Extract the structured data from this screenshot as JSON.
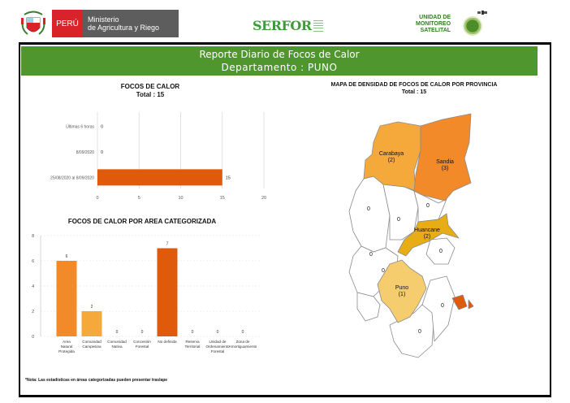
{
  "header": {
    "peru_label": "PERÚ",
    "ministry_line1": "Ministerio",
    "ministry_line2": "de Agricultura y Riego",
    "serfor_logo": "SERFOR",
    "ums_line1": "UNIDAD DE",
    "ums_line2": "MONITOREO",
    "ums_line3": "SATELITAL",
    "icons": [
      "coat-of-arms-icon",
      "globe-icon",
      "satellite-icon"
    ]
  },
  "banner": {
    "title": "Reporte Diario de Focos de Calor",
    "subtitle": "Departamento : PUNO",
    "color": "#4f962e"
  },
  "chart_data": [
    {
      "type": "bar",
      "orientation": "horizontal",
      "title": "FOCOS DE CALOR",
      "subtitle": "Total : 15",
      "categories": [
        "Últimas 6 horas",
        "8/09/2020",
        "25/08/2020 al 8/09/2020"
      ],
      "values": [
        0,
        0,
        15
      ],
      "value_labels": [
        "0",
        "0",
        "15"
      ],
      "xlim": [
        0,
        20
      ],
      "xticks": [
        "0",
        "5",
        "10",
        "15",
        "20"
      ],
      "grid": true,
      "bar_color": "#e05a0c"
    },
    {
      "type": "bar",
      "orientation": "vertical",
      "title": "FOCOS DE CALOR POR AREA CATEGORIZADA",
      "categories": [
        [
          "Area",
          "Natural",
          "Protegida"
        ],
        [
          "Comunidad",
          "Campesina"
        ],
        [
          "Comunidad",
          "Nativa"
        ],
        [
          "Concesión",
          "Forestal"
        ],
        [
          "No definida"
        ],
        [
          "Reserva",
          "Territorial"
        ],
        [
          "Unidad de",
          "Ordenamiento",
          "Forestal"
        ],
        [
          "Zona de",
          "Amortiguamiento"
        ]
      ],
      "values": [
        6,
        2,
        0,
        0,
        7,
        0,
        0,
        0
      ],
      "value_labels": [
        "6",
        "2",
        "0",
        "0",
        "7",
        "0",
        "0",
        "0"
      ],
      "ylim": [
        0,
        8
      ],
      "yticks": [
        "0",
        "2",
        "4",
        "6",
        "8"
      ],
      "grid": true,
      "bar_colors": [
        "#f28a2a",
        "#f5a93a",
        "#f5a93a",
        "#f5a93a",
        "#e05a0c",
        "#f5a93a",
        "#f5a93a",
        "#f5a93a"
      ]
    }
  ],
  "map": {
    "title": "MAPA DE DENSIDAD DE FOCOS DE CALOR POR PROVINCIA",
    "subtitle": "Total : 15",
    "provinces": [
      {
        "name": "Carabaya",
        "count": "(2)",
        "color": "#f5a93a"
      },
      {
        "name": "Sandia",
        "count": "(3)",
        "color": "#f28a2a"
      },
      {
        "name": "Huancane",
        "count": "(2)",
        "color": "#e8ad14"
      },
      {
        "name": "Puno",
        "count": "(1)",
        "color": "#f5cd6e"
      }
    ],
    "zero_labels": [
      "0",
      "0",
      "0",
      "0",
      "0",
      "0",
      "0",
      "0"
    ]
  },
  "footnote": "*Nota: Las estadísticas en áreas categorizadas pueden presentar traslape"
}
